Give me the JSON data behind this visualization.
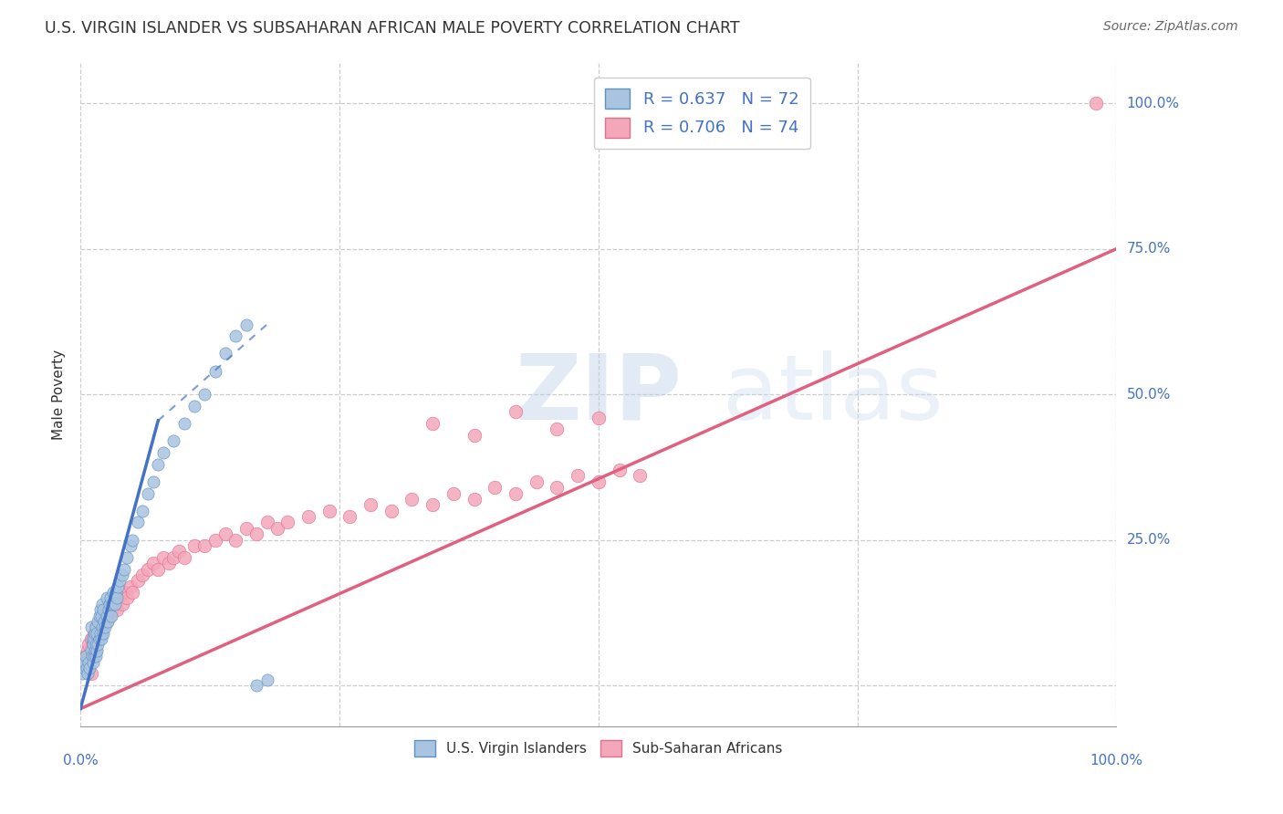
{
  "title": "U.S. VIRGIN ISLANDER VS SUBSAHARAN AFRICAN MALE POVERTY CORRELATION CHART",
  "source": "Source: ZipAtlas.com",
  "ylabel": "Male Poverty",
  "color_vi": "#a8c4e0",
  "color_ss": "#f4a7b9",
  "trendline_vi_color": "#4472c4",
  "trendline_ss_color": "#e06080",
  "background_color": "#ffffff",
  "xlim": [
    0.0,
    1.0
  ],
  "ylim": [
    -0.07,
    1.07
  ],
  "ytick_positions": [
    0.0,
    0.25,
    0.5,
    0.75,
    1.0
  ],
  "ytick_labels": [
    "",
    "25.0%",
    "50.0%",
    "75.0%",
    "100.0%"
  ],
  "vi_x": [
    0.002,
    0.003,
    0.004,
    0.005,
    0.006,
    0.007,
    0.008,
    0.009,
    0.01,
    0.01,
    0.011,
    0.011,
    0.012,
    0.012,
    0.013,
    0.013,
    0.014,
    0.014,
    0.015,
    0.015,
    0.015,
    0.016,
    0.016,
    0.017,
    0.017,
    0.018,
    0.018,
    0.019,
    0.019,
    0.02,
    0.02,
    0.021,
    0.021,
    0.022,
    0.022,
    0.023,
    0.024,
    0.025,
    0.025,
    0.026,
    0.027,
    0.028,
    0.029,
    0.03,
    0.031,
    0.032,
    0.033,
    0.034,
    0.035,
    0.036,
    0.038,
    0.04,
    0.042,
    0.045,
    0.048,
    0.05,
    0.055,
    0.06,
    0.065,
    0.07,
    0.075,
    0.08,
    0.09,
    0.1,
    0.11,
    0.12,
    0.13,
    0.14,
    0.15,
    0.16,
    0.17,
    0.18
  ],
  "vi_y": [
    0.02,
    0.03,
    0.04,
    0.05,
    0.03,
    0.02,
    0.04,
    0.03,
    0.06,
    0.1,
    0.05,
    0.08,
    0.04,
    0.07,
    0.05,
    0.08,
    0.06,
    0.09,
    0.05,
    0.07,
    0.1,
    0.06,
    0.09,
    0.07,
    0.11,
    0.08,
    0.12,
    0.09,
    0.13,
    0.08,
    0.12,
    0.1,
    0.14,
    0.09,
    0.13,
    0.11,
    0.1,
    0.12,
    0.15,
    0.11,
    0.13,
    0.14,
    0.15,
    0.12,
    0.14,
    0.16,
    0.14,
    0.16,
    0.15,
    0.17,
    0.18,
    0.19,
    0.2,
    0.22,
    0.24,
    0.25,
    0.28,
    0.3,
    0.33,
    0.35,
    0.38,
    0.4,
    0.42,
    0.45,
    0.48,
    0.5,
    0.54,
    0.57,
    0.6,
    0.62,
    0.0,
    0.01
  ],
  "ss_x": [
    0.003,
    0.005,
    0.007,
    0.008,
    0.01,
    0.01,
    0.012,
    0.013,
    0.015,
    0.015,
    0.016,
    0.017,
    0.018,
    0.019,
    0.02,
    0.021,
    0.022,
    0.023,
    0.024,
    0.025,
    0.028,
    0.03,
    0.032,
    0.035,
    0.038,
    0.04,
    0.042,
    0.045,
    0.048,
    0.05,
    0.055,
    0.06,
    0.065,
    0.07,
    0.075,
    0.08,
    0.085,
    0.09,
    0.095,
    0.1,
    0.11,
    0.12,
    0.13,
    0.14,
    0.15,
    0.16,
    0.17,
    0.18,
    0.19,
    0.2,
    0.22,
    0.24,
    0.26,
    0.28,
    0.3,
    0.32,
    0.34,
    0.36,
    0.38,
    0.4,
    0.42,
    0.44,
    0.46,
    0.48,
    0.5,
    0.52,
    0.54,
    0.34,
    0.38,
    0.42,
    0.46,
    0.5,
    0.98,
    0.01
  ],
  "ss_y": [
    0.04,
    0.05,
    0.06,
    0.07,
    0.05,
    0.08,
    0.07,
    0.09,
    0.06,
    0.1,
    0.08,
    0.09,
    0.1,
    0.11,
    0.09,
    0.1,
    0.11,
    0.12,
    0.13,
    0.11,
    0.12,
    0.13,
    0.14,
    0.13,
    0.15,
    0.14,
    0.16,
    0.15,
    0.17,
    0.16,
    0.18,
    0.19,
    0.2,
    0.21,
    0.2,
    0.22,
    0.21,
    0.22,
    0.23,
    0.22,
    0.24,
    0.24,
    0.25,
    0.26,
    0.25,
    0.27,
    0.26,
    0.28,
    0.27,
    0.28,
    0.29,
    0.3,
    0.29,
    0.31,
    0.3,
    0.32,
    0.31,
    0.33,
    0.32,
    0.34,
    0.33,
    0.35,
    0.34,
    0.36,
    0.35,
    0.37,
    0.36,
    0.45,
    0.43,
    0.47,
    0.44,
    0.46,
    1.0,
    0.02
  ],
  "vi_trendline_x0": 0.0,
  "vi_trendline_y0": -0.04,
  "vi_trendline_x1": 0.18,
  "vi_trendline_y1": 0.62,
  "vi_trendline_solid_x1": 0.075,
  "vi_trendline_solid_y1": 0.455,
  "ss_trendline_x0": 0.0,
  "ss_trendline_y0": -0.04,
  "ss_trendline_x1": 1.0,
  "ss_trendline_y1": 0.75
}
